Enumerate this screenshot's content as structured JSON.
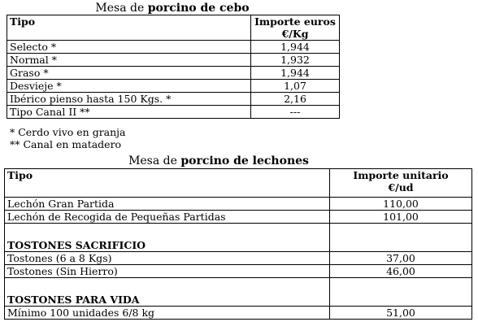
{
  "cebo": {
    "title_prefix": "Mesa de",
    "title_bold": "porcino de cebo",
    "col1": "Tipo",
    "col2_line1": "Importe euros",
    "col2_line2": "€/Kg",
    "rows": [
      {
        "tipo": "Selecto *",
        "importe": "1,944"
      },
      {
        "tipo": "Normal *",
        "importe": "1,932"
      },
      {
        "tipo": "Graso *",
        "importe": "1,944"
      },
      {
        "tipo": "Desvieje *",
        "importe": "1,07"
      },
      {
        "tipo": "Ibérico pienso hasta 150 Kgs. *",
        "importe": "2,16"
      },
      {
        "tipo": "Tipo Canal II **",
        "importe": "---"
      }
    ],
    "notes": [
      "* Cerdo vivo en granja",
      "** Canal en matadero"
    ]
  },
  "lechones": {
    "title_prefix": "Mesa de",
    "title_bold": "porcino de lechones",
    "col1": "Tipo",
    "col2_line1": "Importe unitario",
    "col2_line2": "€/ud",
    "rows": [
      {
        "tipo": "Lechón Gran Partida",
        "importe": "110,00"
      },
      {
        "tipo": "Lechón de Recogida de Pequeñas Partidas",
        "importe": "101,00"
      }
    ],
    "section1_title": "TOSTONES SACRIFICIO",
    "section1_rows": [
      {
        "tipo": "Tostones (6 a 8 Kgs)",
        "importe": "37,00"
      },
      {
        "tipo": "Tostones  (Sin Hierro)",
        "importe": "46,00"
      }
    ],
    "section2_title": "TOSTONES PARA VIDA",
    "section2_rows": [
      {
        "tipo": "Mínimo 100 unidades 6/8 kg",
        "importe": "51,00"
      }
    ]
  }
}
